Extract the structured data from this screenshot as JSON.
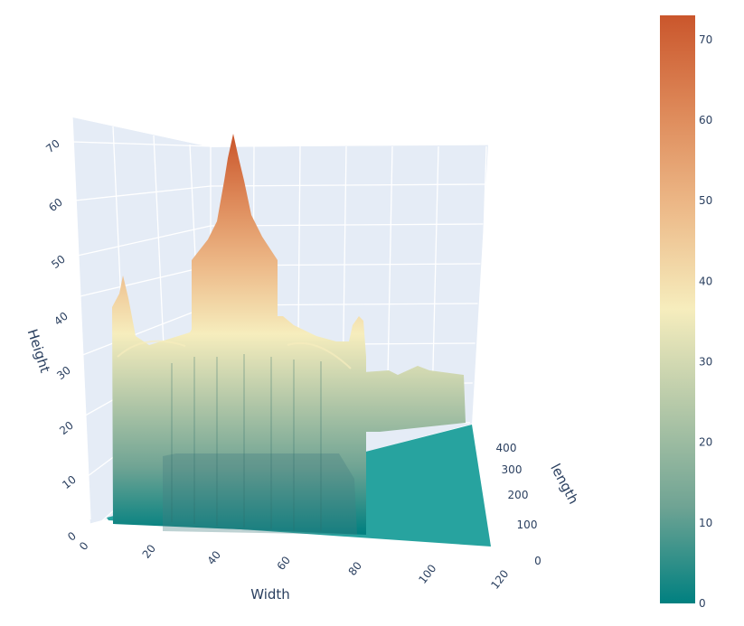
{
  "chart_data": {
    "type": "surface",
    "title": "",
    "colorscale": [
      "#008080",
      "#70a494",
      "#b4c8a8",
      "#f6edbd",
      "#edbb8a",
      "#de8a5a",
      "#ca562c"
    ],
    "axes": {
      "x": {
        "title": "Width",
        "range": [
          0,
          120
        ],
        "ticks": [
          "0",
          "20",
          "40",
          "60",
          "80",
          "100",
          "120"
        ]
      },
      "y": {
        "title": "length",
        "range": [
          0,
          400
        ],
        "ticks": [
          "0",
          "100",
          "200",
          "300",
          "400"
        ]
      },
      "z": {
        "title": "Height",
        "range": [
          0,
          73
        ],
        "ticks": [
          "0",
          "10",
          "20",
          "30",
          "40",
          "50",
          "60",
          "70"
        ]
      }
    },
    "colorbar": {
      "range": [
        0,
        73
      ],
      "ticks": [
        "0",
        "10",
        "20",
        "30",
        "40",
        "50",
        "60",
        "70"
      ]
    },
    "background": "#e5ecf6",
    "grid": true,
    "surface_summary": {
      "ground_level": 0,
      "main_wall_height": 32,
      "central_tower_height": 52,
      "spire_peak_height": 73,
      "side_pinnacle_height": 43,
      "rear_block_height": 20
    }
  }
}
